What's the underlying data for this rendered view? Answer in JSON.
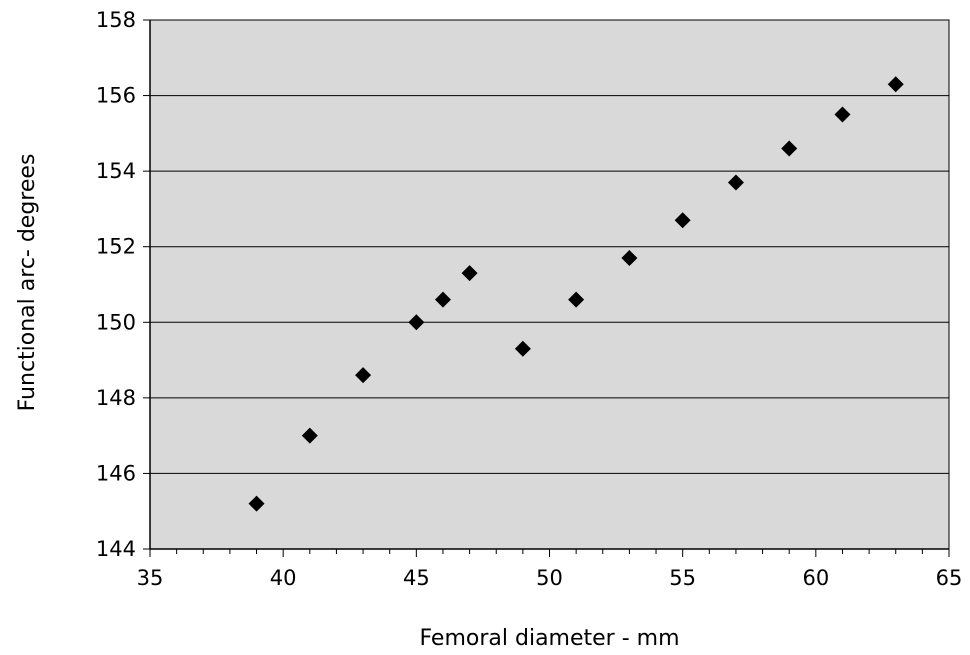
{
  "chart_data": {
    "type": "scatter",
    "title": "",
    "xlabel": "Femoral diameter - mm",
    "ylabel": "Functional arc- degrees",
    "xlim": [
      35,
      65
    ],
    "ylim": [
      144,
      158
    ],
    "x_ticks": [
      35,
      40,
      45,
      50,
      55,
      60,
      65
    ],
    "y_ticks": [
      144,
      146,
      148,
      150,
      152,
      154,
      156,
      158
    ],
    "x_minor_step": 1,
    "grid": {
      "horizontal": true,
      "vertical": false
    },
    "legend": "none",
    "marker": "diamond",
    "colors": {
      "plot_background": "#d9d9d9",
      "marker": "#000000",
      "gridline": "#000000",
      "axis": "#000000"
    },
    "series": [
      {
        "x": [
          39,
          41,
          43,
          45,
          46,
          47,
          49,
          51,
          53,
          55,
          57,
          59,
          61,
          63
        ],
        "y": [
          145.2,
          147.0,
          148.6,
          150.0,
          150.6,
          151.3,
          149.3,
          150.6,
          151.7,
          152.7,
          153.7,
          154.6,
          155.5,
          156.3
        ]
      }
    ]
  }
}
